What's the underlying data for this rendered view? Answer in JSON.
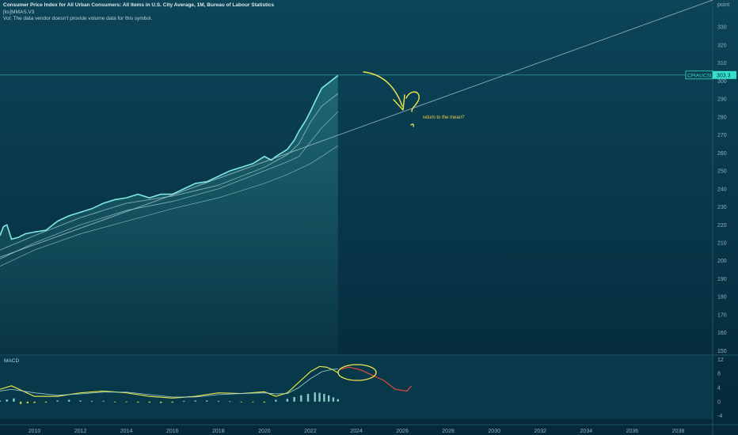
{
  "legend": {
    "title": "Consumer Price Index for All Urban Consumers: All Items in U.S. City Average, 1M, Bureau of Labour Statistics",
    "indicator": "[ks]MMAS.V3",
    "volume_note": "Vol: The data vendor doesn't provide volume data for this symbol."
  },
  "scale_mode_label": "point",
  "price_tag": {
    "symbol": "CPIAUCSL",
    "value": "303.3"
  },
  "annotation": {
    "text": "return to the mean?"
  },
  "macd_label": "MACD",
  "colors": {
    "background": "#06303f",
    "price_line": "#7fe9e0",
    "ma_lines": "#9fcfd3",
    "trendline": "#a9c7d0",
    "annotation_yellow": "#f2e84a",
    "macd_line": "#e3e349",
    "signal_line": "#9fd0d3",
    "projection_red": "#e24a3a",
    "tag_bg": "#35e2c7"
  },
  "chart_data": [
    {
      "type": "line",
      "title": "Consumer Price Index for All Urban Consumers: All Items in U.S. City Average, 1M, Bureau of Labour Statistics",
      "xlim": [
        2008.5,
        2039.5
      ],
      "ylim": [
        148,
        345
      ],
      "x_ticks": [
        "2010",
        "2012",
        "2014",
        "2016",
        "2018",
        "2020",
        "2022",
        "2024",
        "2026",
        "2028",
        "2030",
        "2032",
        "2034",
        "2036",
        "2038"
      ],
      "y_ticks": [
        150,
        160,
        170,
        180,
        190,
        200,
        210,
        220,
        230,
        240,
        250,
        260,
        270,
        280,
        290,
        300,
        310,
        320,
        330
      ],
      "horizontal_level": 303.3,
      "series": [
        {
          "name": "CPIAUCSL",
          "x": [
            2008.5,
            2008.65,
            2008.8,
            2009.0,
            2009.3,
            2009.6,
            2010.0,
            2010.5,
            2011.0,
            2011.5,
            2012.0,
            2012.5,
            2013.0,
            2013.5,
            2014.0,
            2014.5,
            2015.0,
            2015.5,
            2016.0,
            2016.5,
            2017.0,
            2017.5,
            2018.0,
            2018.5,
            2019.0,
            2019.5,
            2020.0,
            2020.3,
            2020.5,
            2021.0,
            2021.3,
            2021.5,
            2021.8,
            2022.0,
            2022.3,
            2022.5,
            2022.8,
            2023.0,
            2023.2
          ],
          "values": [
            214,
            219,
            220,
            212,
            213,
            215,
            216,
            217,
            222,
            225,
            227,
            229,
            232,
            234,
            235,
            237,
            235,
            237,
            237,
            240,
            243,
            244,
            247,
            250,
            252,
            254,
            258,
            256,
            258,
            262,
            267,
            272,
            278,
            283,
            291,
            296,
            299,
            301,
            303
          ]
        },
        {
          "name": "",
          "x": [
            2008.5,
            2010,
            2012,
            2014,
            2016,
            2018,
            2020,
            2021,
            2021.5,
            2022,
            2022.5,
            2023.2
          ],
          "values": [
            206,
            214,
            224,
            232,
            236,
            242,
            252,
            259,
            265,
            277,
            286,
            293
          ]
        },
        {
          "name": "",
          "x": [
            2008.5,
            2010,
            2012,
            2014,
            2016,
            2018,
            2020,
            2021,
            2021.5,
            2022,
            2022.5,
            2023.2
          ],
          "values": [
            201,
            210,
            220,
            228,
            233,
            240,
            250,
            255,
            258,
            266,
            274,
            283
          ]
        },
        {
          "name": "",
          "x": [
            2008.5,
            2010,
            2012,
            2014,
            2016,
            2018,
            2020,
            2021,
            2022,
            2022.5,
            2023.2
          ],
          "values": [
            197,
            206,
            215,
            222,
            229,
            235,
            243,
            248,
            254,
            258,
            264
          ]
        },
        {
          "name": "",
          "x": [
            2008.5,
            2039.5
          ],
          "values": [
            202,
            345
          ]
        }
      ]
    },
    {
      "type": "line",
      "title": "MACD",
      "ylim": [
        -5,
        13
      ],
      "y_ticks": [
        -4,
        0,
        4,
        8,
        12
      ],
      "series": [
        {
          "name": "",
          "x": [
            2008.5,
            2009,
            2009.5,
            2010,
            2011,
            2012,
            2013,
            2014,
            2015,
            2016,
            2017,
            2018,
            2019,
            2020,
            2020.5,
            2021,
            2021.5,
            2022,
            2022.4,
            2022.7,
            2023.0,
            2023.2
          ],
          "values": [
            3.5,
            4.5,
            3,
            1.5,
            1.5,
            2.5,
            3,
            2.5,
            1.5,
            1,
            1.5,
            2.5,
            2.3,
            2.8,
            1.5,
            2.5,
            5.5,
            8.5,
            10,
            9.8,
            9,
            8.2
          ]
        },
        {
          "name": "",
          "x": [
            2008.5,
            2009,
            2010,
            2011,
            2012,
            2013,
            2014,
            2015,
            2016,
            2017,
            2018,
            2019,
            2020,
            2020.5,
            2021,
            2021.5,
            2022,
            2022.5,
            2023,
            2023.2
          ],
          "values": [
            3,
            3.5,
            2.5,
            1.8,
            2.2,
            2.7,
            2.7,
            2,
            1.3,
            1.3,
            2,
            2.3,
            2.5,
            2.2,
            2.3,
            4,
            6.5,
            8.5,
            9.2,
            9.3
          ]
        },
        {
          "name": "",
          "x": [
            2023.3,
            2023.7,
            2024.2,
            2024.7,
            2025.2,
            2025.7,
            2026.2,
            2026.4
          ],
          "values": [
            9.2,
            9.8,
            9,
            7.5,
            6,
            3.5,
            3,
            4.5
          ]
        }
      ],
      "histogram": {
        "x": [
          2008.5,
          2008.8,
          2009.1,
          2009.4,
          2009.7,
          2010,
          2010.5,
          2011,
          2011.5,
          2012,
          2012.5,
          2013,
          2013.5,
          2014,
          2014.5,
          2015,
          2015.5,
          2016,
          2016.5,
          2017,
          2017.5,
          2018,
          2018.5,
          2019,
          2019.5,
          2020,
          2020.5,
          2021,
          2021.3,
          2021.6,
          2021.9,
          2022.2,
          2022.4,
          2022.6,
          2022.8,
          2023.0,
          2023.2
        ],
        "values": [
          0.3,
          0.6,
          0.9,
          -0.7,
          -0.5,
          -0.4,
          -0.3,
          0.3,
          0.5,
          0.3,
          0.2,
          0.2,
          -0.2,
          -0.2,
          -0.3,
          -0.3,
          -0.4,
          -0.3,
          0.2,
          0.3,
          0.3,
          0.2,
          0.1,
          -0.2,
          -0.2,
          -0.3,
          0.5,
          0.8,
          1.3,
          1.8,
          2.2,
          2.6,
          2.5,
          2.2,
          1.8,
          1.2,
          0.7
        ]
      }
    }
  ]
}
